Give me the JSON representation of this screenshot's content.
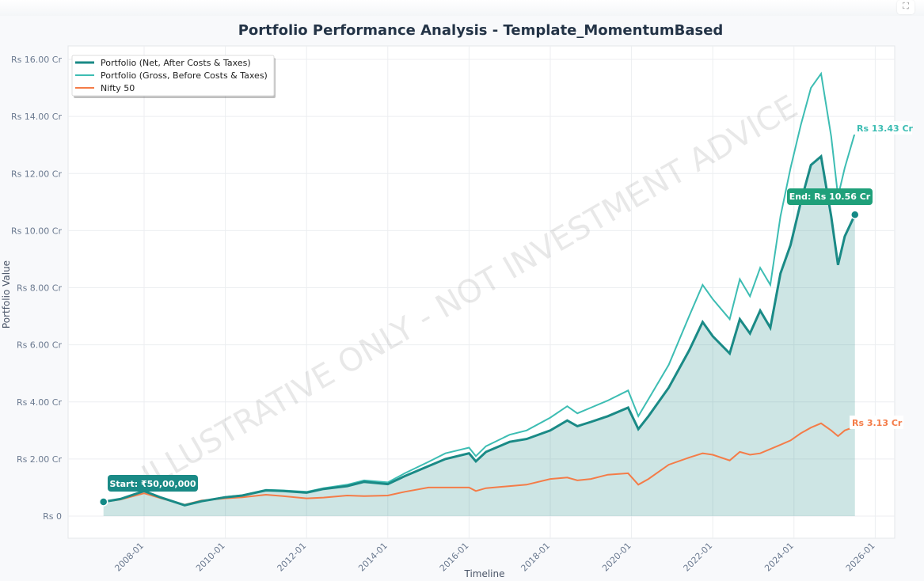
{
  "chart_data": {
    "type": "line",
    "title": "Portfolio Performance Analysis - Template_MomentumBased",
    "xlabel": "Timeline",
    "ylabel": "Portfolio Value",
    "ylim": [
      -0.7,
      16.4
    ],
    "xlim": [
      "2006-05",
      "2026-02"
    ],
    "grid": true,
    "legend": "top-left",
    "y_ticks": [
      0,
      2,
      4,
      6,
      8,
      10,
      12,
      14,
      16
    ],
    "y_tick_labels": [
      "Rs 0",
      "Rs 2.00 Cr",
      "Rs 4.00 Cr",
      "Rs 6.00 Cr",
      "Rs 8.00 Cr",
      "Rs 10.00 Cr",
      "Rs 12.00 Cr",
      "Rs 14.00 Cr",
      "Rs 16.00 Cr"
    ],
    "x_tick_labels": [
      "2008-01",
      "2010-01",
      "2012-01",
      "2014-01",
      "2016-01",
      "2018-01",
      "2020-01",
      "2022-01",
      "2024-01",
      "2026-01"
    ],
    "unit": "Cr",
    "x": [
      "2007-01",
      "2007-06",
      "2008-01",
      "2008-06",
      "2009-01",
      "2009-06",
      "2010-01",
      "2010-06",
      "2011-01",
      "2011-06",
      "2012-01",
      "2012-06",
      "2013-01",
      "2013-06",
      "2014-01",
      "2014-06",
      "2015-01",
      "2015-06",
      "2016-01",
      "2016-03",
      "2016-06",
      "2017-01",
      "2017-06",
      "2018-01",
      "2018-06",
      "2018-09",
      "2019-01",
      "2019-06",
      "2019-12",
      "2020-03",
      "2020-06",
      "2020-12",
      "2021-06",
      "2021-10",
      "2022-01",
      "2022-06",
      "2022-09",
      "2022-12",
      "2023-03",
      "2023-06",
      "2023-09",
      "2023-12",
      "2024-03",
      "2024-06",
      "2024-09",
      "2024-12",
      "2025-02",
      "2025-04",
      "2025-07"
    ],
    "series": [
      {
        "name": "Portfolio (Net, After Costs & Taxes)",
        "color": "#1a8a86",
        "fill": true,
        "values": [
          0.5,
          0.6,
          0.88,
          0.65,
          0.38,
          0.52,
          0.66,
          0.72,
          0.9,
          0.88,
          0.82,
          0.95,
          1.05,
          1.2,
          1.12,
          1.4,
          1.75,
          2.0,
          2.2,
          1.92,
          2.25,
          2.6,
          2.7,
          3.0,
          3.35,
          3.15,
          3.3,
          3.5,
          3.8,
          3.05,
          3.5,
          4.5,
          5.8,
          6.8,
          6.3,
          5.7,
          6.9,
          6.4,
          7.2,
          6.6,
          8.5,
          9.5,
          11.0,
          12.3,
          12.6,
          10.5,
          8.8,
          9.8,
          10.56
        ]
      },
      {
        "name": "Portfolio (Gross, Before Costs & Taxes)",
        "color": "#3dbdb3",
        "values": [
          0.5,
          0.6,
          0.88,
          0.65,
          0.38,
          0.52,
          0.67,
          0.73,
          0.92,
          0.9,
          0.85,
          0.98,
          1.1,
          1.25,
          1.18,
          1.5,
          1.9,
          2.2,
          2.4,
          2.1,
          2.45,
          2.85,
          3.0,
          3.45,
          3.85,
          3.6,
          3.8,
          4.05,
          4.4,
          3.5,
          4.1,
          5.3,
          7.0,
          8.1,
          7.6,
          6.9,
          8.3,
          7.7,
          8.7,
          8.1,
          10.5,
          12.2,
          13.7,
          15.0,
          15.5,
          13.3,
          11.2,
          12.2,
          13.43
        ]
      },
      {
        "name": "Nifty 50",
        "color": "#f47c48",
        "values": [
          0.5,
          0.58,
          0.8,
          0.62,
          0.4,
          0.55,
          0.62,
          0.66,
          0.75,
          0.7,
          0.62,
          0.65,
          0.72,
          0.7,
          0.72,
          0.85,
          1.0,
          1.0,
          1.0,
          0.88,
          0.98,
          1.05,
          1.1,
          1.3,
          1.35,
          1.25,
          1.3,
          1.45,
          1.5,
          1.1,
          1.3,
          1.8,
          2.05,
          2.2,
          2.15,
          1.95,
          2.25,
          2.15,
          2.2,
          2.35,
          2.5,
          2.65,
          2.9,
          3.1,
          3.25,
          3.0,
          2.8,
          3.0,
          3.13
        ]
      }
    ],
    "annotations": {
      "start": "Start: ₹50,00,000",
      "end": "End: Rs 10.56 Cr",
      "gross_end": "Rs 13.43 Cr",
      "nifty_end": "Rs 3.13 Cr"
    },
    "watermark": "ILLUSTRATIVE ONLY - NOT INVESTMENT ADVICE"
  },
  "ui": {
    "expand_icon": "expand-icon"
  }
}
